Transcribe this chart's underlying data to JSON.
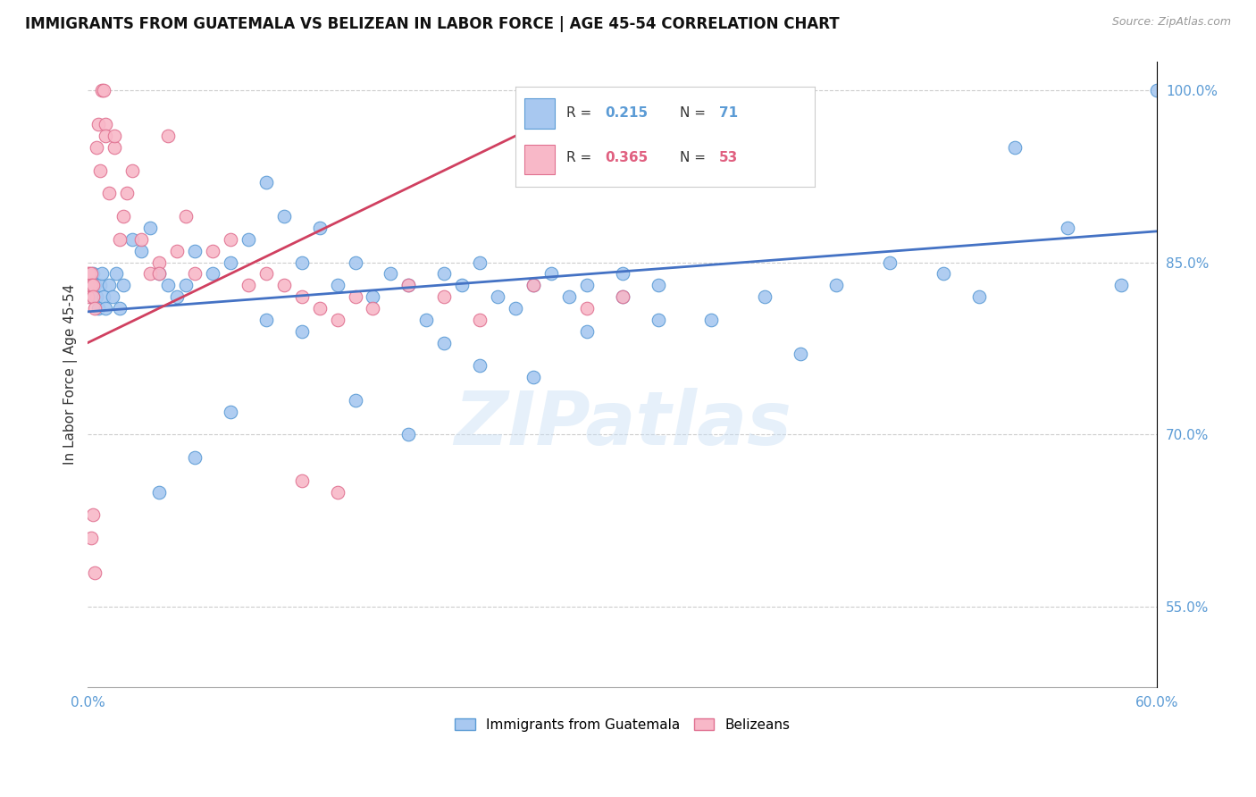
{
  "title": "IMMIGRANTS FROM GUATEMALA VS BELIZEAN IN LABOR FORCE | AGE 45-54 CORRELATION CHART",
  "source": "Source: ZipAtlas.com",
  "ylabel": "In Labor Force | Age 45-54",
  "legend_label1": "Immigrants from Guatemala",
  "legend_label2": "Belizeans",
  "R1": 0.215,
  "N1": 71,
  "R2": 0.365,
  "N2": 53,
  "xlim": [
    0.0,
    0.6
  ],
  "ylim": [
    0.48,
    1.025
  ],
  "yticks": [
    0.55,
    0.7,
    0.85,
    1.0
  ],
  "ytick_labels": [
    "55.0%",
    "70.0%",
    "85.0%",
    "100.0%"
  ],
  "xticks": [
    0.0,
    0.1,
    0.2,
    0.3,
    0.4,
    0.5,
    0.6
  ],
  "xtick_labels": [
    "0.0%",
    "",
    "",
    "",
    "",
    "",
    "60.0%"
  ],
  "blue_color": "#A8C8F0",
  "pink_color": "#F8B8C8",
  "blue_edge_color": "#5B9BD5",
  "pink_edge_color": "#E07090",
  "blue_line_color": "#4472C4",
  "pink_line_color": "#D04060",
  "watermark": "ZIPatlas",
  "blue_x": [
    0.001,
    0.002,
    0.003,
    0.004,
    0.005,
    0.006,
    0.007,
    0.008,
    0.009,
    0.01,
    0.012,
    0.014,
    0.016,
    0.018,
    0.02,
    0.025,
    0.03,
    0.035,
    0.04,
    0.045,
    0.05,
    0.055,
    0.06,
    0.07,
    0.08,
    0.09,
    0.1,
    0.11,
    0.12,
    0.13,
    0.14,
    0.15,
    0.16,
    0.17,
    0.18,
    0.19,
    0.2,
    0.21,
    0.22,
    0.23,
    0.24,
    0.25,
    0.26,
    0.27,
    0.28,
    0.3,
    0.32,
    0.35,
    0.38,
    0.4,
    0.42,
    0.45,
    0.48,
    0.5,
    0.52,
    0.55,
    0.58,
    0.6,
    0.28,
    0.3,
    0.32,
    0.1,
    0.12,
    0.15,
    0.18,
    0.2,
    0.22,
    0.25,
    0.08,
    0.06,
    0.04
  ],
  "blue_y": [
    0.83,
    0.82,
    0.84,
    0.83,
    0.82,
    0.81,
    0.83,
    0.84,
    0.82,
    0.81,
    0.83,
    0.82,
    0.84,
    0.81,
    0.83,
    0.87,
    0.86,
    0.88,
    0.84,
    0.83,
    0.82,
    0.83,
    0.86,
    0.84,
    0.85,
    0.87,
    0.92,
    0.89,
    0.85,
    0.88,
    0.83,
    0.85,
    0.82,
    0.84,
    0.83,
    0.8,
    0.84,
    0.83,
    0.85,
    0.82,
    0.81,
    0.83,
    0.84,
    0.82,
    0.83,
    0.84,
    0.83,
    0.8,
    0.82,
    0.77,
    0.83,
    0.85,
    0.84,
    0.82,
    0.95,
    0.88,
    0.83,
    1.0,
    0.79,
    0.82,
    0.8,
    0.8,
    0.79,
    0.73,
    0.7,
    0.78,
    0.76,
    0.75,
    0.72,
    0.68,
    0.65
  ],
  "pink_x": [
    0.0,
    0.0,
    0.0,
    0.001,
    0.001,
    0.002,
    0.002,
    0.003,
    0.003,
    0.004,
    0.005,
    0.006,
    0.007,
    0.008,
    0.009,
    0.01,
    0.01,
    0.012,
    0.015,
    0.015,
    0.018,
    0.02,
    0.022,
    0.025,
    0.03,
    0.035,
    0.04,
    0.04,
    0.045,
    0.05,
    0.055,
    0.06,
    0.07,
    0.08,
    0.09,
    0.1,
    0.11,
    0.12,
    0.13,
    0.14,
    0.15,
    0.16,
    0.18,
    0.2,
    0.22,
    0.25,
    0.28,
    0.3,
    0.12,
    0.14,
    0.002,
    0.003,
    0.004
  ],
  "pink_y": [
    0.84,
    0.83,
    0.82,
    0.84,
    0.83,
    0.84,
    0.83,
    0.83,
    0.82,
    0.81,
    0.95,
    0.97,
    0.93,
    1.0,
    1.0,
    0.97,
    0.96,
    0.91,
    0.95,
    0.96,
    0.87,
    0.89,
    0.91,
    0.93,
    0.87,
    0.84,
    0.85,
    0.84,
    0.96,
    0.86,
    0.89,
    0.84,
    0.86,
    0.87,
    0.83,
    0.84,
    0.83,
    0.82,
    0.81,
    0.8,
    0.82,
    0.81,
    0.83,
    0.82,
    0.8,
    0.83,
    0.81,
    0.82,
    0.66,
    0.65,
    0.61,
    0.63,
    0.58
  ],
  "blue_trendline": [
    0.0,
    0.6,
    0.807,
    0.877
  ],
  "pink_trendline": [
    0.0,
    0.28,
    0.78,
    0.99
  ]
}
